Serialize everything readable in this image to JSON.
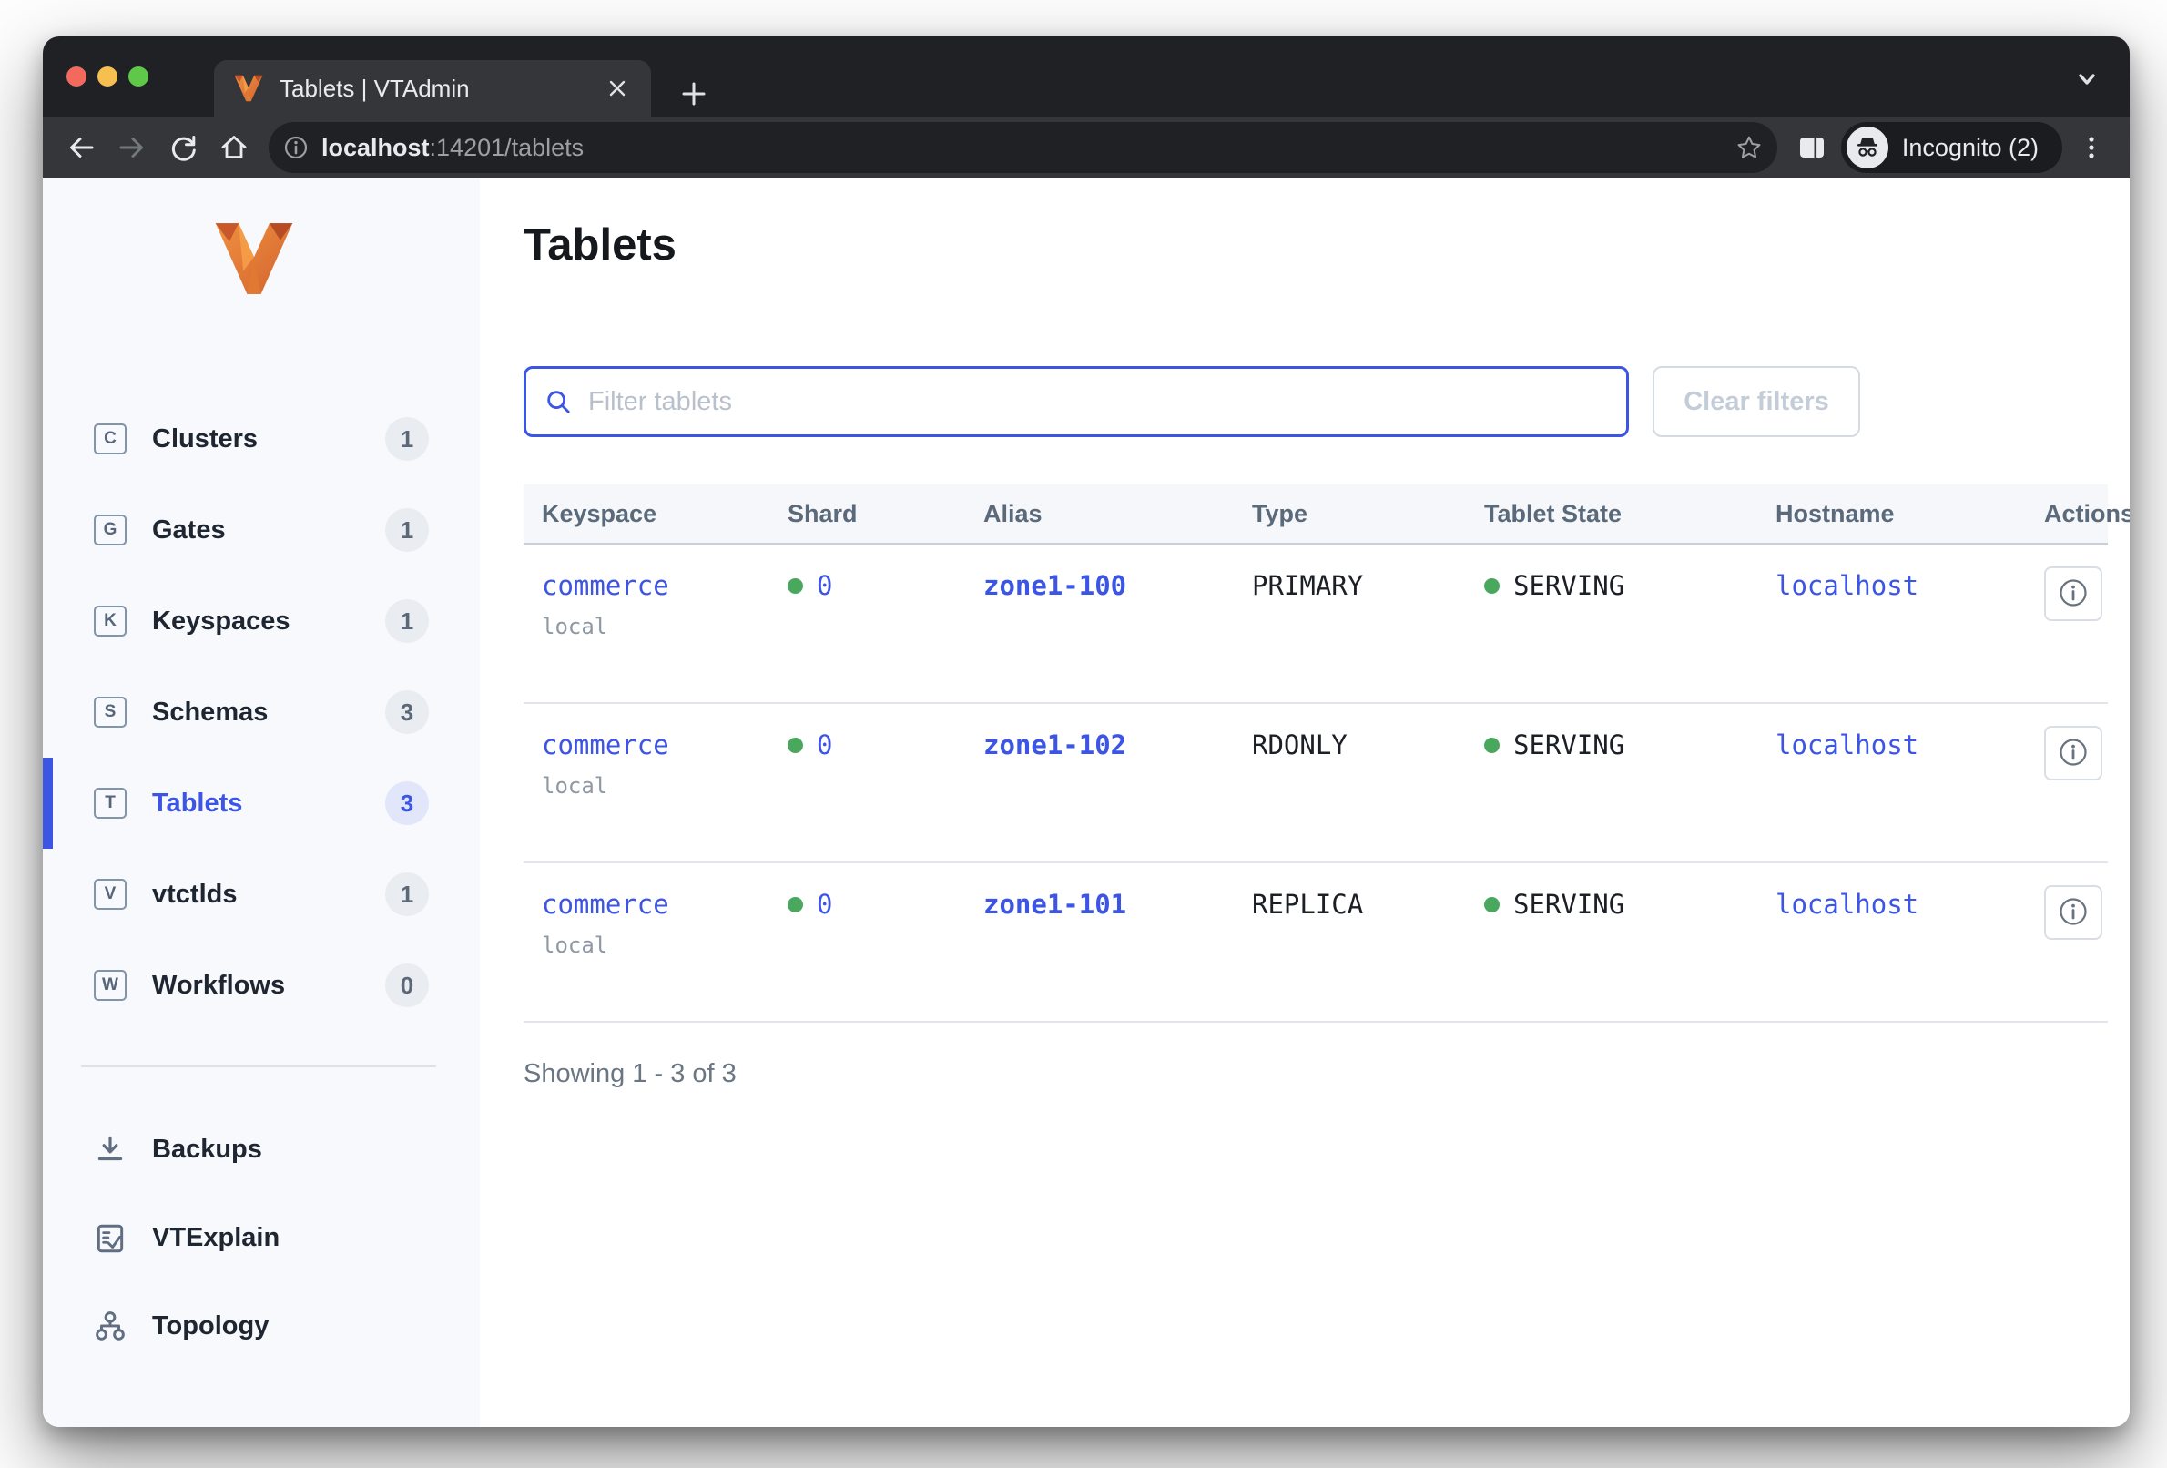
{
  "browser": {
    "tab_title": "Tablets | VTAdmin",
    "url_host": "localhost",
    "url_rest": ":14201/tablets",
    "incognito_label": "Incognito (2)"
  },
  "sidebar": {
    "nav": [
      {
        "letter": "C",
        "label": "Clusters",
        "count": "1",
        "active": false
      },
      {
        "letter": "G",
        "label": "Gates",
        "count": "1",
        "active": false
      },
      {
        "letter": "K",
        "label": "Keyspaces",
        "count": "1",
        "active": false
      },
      {
        "letter": "S",
        "label": "Schemas",
        "count": "3",
        "active": false
      },
      {
        "letter": "T",
        "label": "Tablets",
        "count": "3",
        "active": true
      },
      {
        "letter": "V",
        "label": "vtctlds",
        "count": "1",
        "active": false
      },
      {
        "letter": "W",
        "label": "Workflows",
        "count": "0",
        "active": false
      }
    ],
    "tools": [
      {
        "icon": "download-icon",
        "label": "Backups"
      },
      {
        "icon": "document-check-icon",
        "label": "VTExplain"
      },
      {
        "icon": "topology-icon",
        "label": "Topology"
      }
    ]
  },
  "main": {
    "title": "Tablets",
    "filter_placeholder": "Filter tablets",
    "clear_button": "Clear filters",
    "footer": "Showing 1 - 3 of 3",
    "table": {
      "headers": [
        "Keyspace",
        "Shard",
        "Alias",
        "Type",
        "Tablet State",
        "Hostname",
        "Actions"
      ],
      "rows": [
        {
          "keyspace": "commerce",
          "cluster": "local",
          "shard": "0",
          "alias": "zone1-100",
          "type": "PRIMARY",
          "state": "SERVING",
          "hostname": "localhost"
        },
        {
          "keyspace": "commerce",
          "cluster": "local",
          "shard": "0",
          "alias": "zone1-102",
          "type": "RDONLY",
          "state": "SERVING",
          "hostname": "localhost"
        },
        {
          "keyspace": "commerce",
          "cluster": "local",
          "shard": "0",
          "alias": "zone1-101",
          "type": "REPLICA",
          "state": "SERVING",
          "hostname": "localhost"
        }
      ]
    }
  },
  "colors": {
    "accent": "#3c55e5",
    "green": "#4aa85e"
  }
}
